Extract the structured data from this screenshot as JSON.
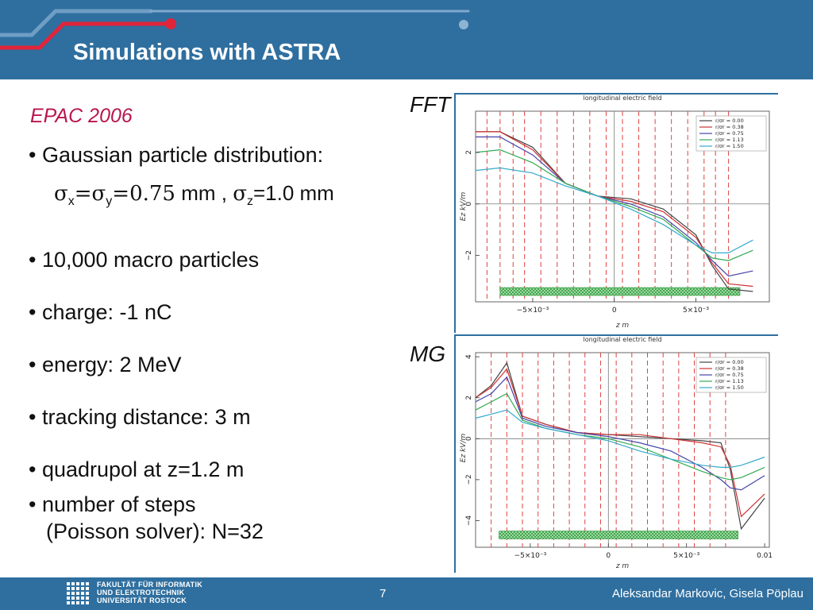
{
  "slide": {
    "title": "Simulations with ASTRA",
    "subtitle": "EPAC 2006",
    "bullets": [
      "• Gaussian particle distribution:",
      "• 10,000 macro particles",
      "• charge: -1 nC",
      "• energy: 2 MeV",
      "• tracking distance: 3 m",
      "• quadrupol at z=1.2 m",
      "• number of steps"
    ],
    "bullet_continuation": "(Poisson solver): N=32",
    "formula": {
      "sigma": "σ",
      "sub_x": "x",
      "sub_y": "y",
      "sub_z": "z",
      "eq1": "=",
      "eq2": "=0.75",
      "unit1": " mm , ",
      "eq3": "=1.0 mm"
    }
  },
  "plots": [
    {
      "label": "FFT",
      "title": "longitudinal electric field",
      "xlabel": "z m",
      "ylabel": "Ez kV/m",
      "xticks": [
        "−5×10⁻³",
        "0",
        "5×10⁻³"
      ],
      "yticks": [
        "2",
        "0",
        "−2"
      ],
      "legend": [
        "r/σr = 0.00",
        "r/σr = 0.38",
        "r/σr = 0.75",
        "r/σr = 1.13",
        "r/σr = 1.50"
      ]
    },
    {
      "label": "MG",
      "title": "longitudinal electric field",
      "xlabel": "z m",
      "ylabel": "Ez kV/m",
      "xticks": [
        "−5×10⁻³",
        "0",
        "5×10⁻³",
        "0.01"
      ],
      "yticks": [
        "4",
        "2",
        "0",
        "−2",
        "−4"
      ],
      "legend": [
        "r/σr = 0.00",
        "r/σr = 0.38",
        "r/σr = 0.75",
        "r/σr = 1.13",
        "r/σr = 1.50"
      ]
    }
  ],
  "footer": {
    "logo_lines": [
      "FAKULTÄT FÜR INFORMATIK",
      "UND ELEKTROTECHNIK",
      "UNIVERSITÄT ROSTOCK"
    ],
    "page": "7",
    "authors": "Aleksandar Markovic, Gisela Pöplau"
  },
  "colors": {
    "header": "#2f6f9f",
    "accent": "#e0243a",
    "subtitle": "#b8164f",
    "series": [
      "#444444",
      "#cc3333",
      "#4444aa",
      "#33aa55",
      "#33aacc"
    ]
  },
  "chart_data": [
    {
      "type": "line",
      "title": "longitudinal electric field",
      "xlabel": "z m",
      "ylabel": "Ez kV/m",
      "xlim": [
        -0.0085,
        0.0095
      ],
      "ylim": [
        -3.8,
        3.6
      ],
      "x": [
        -0.0085,
        -0.007,
        -0.005,
        -0.003,
        -0.001,
        0.001,
        0.003,
        0.005,
        0.006,
        0.007,
        0.0085
      ],
      "series": [
        {
          "name": "r/σr = 0.00",
          "values": [
            2.8,
            2.8,
            2.2,
            0.8,
            0.3,
            0.2,
            -0.2,
            -1.2,
            -2.4,
            -3.3,
            -3.4
          ]
        },
        {
          "name": "r/σr = 0.38",
          "values": [
            2.8,
            2.8,
            2.1,
            0.8,
            0.3,
            0.1,
            -0.3,
            -1.3,
            -2.3,
            -3.1,
            -3.2
          ]
        },
        {
          "name": "r/σr = 0.75",
          "values": [
            2.6,
            2.6,
            1.9,
            0.8,
            0.3,
            0.0,
            -0.5,
            -1.5,
            -2.2,
            -2.8,
            -2.6
          ]
        },
        {
          "name": "r/σr = 1.13",
          "values": [
            2.0,
            2.1,
            1.6,
            0.8,
            0.3,
            -0.1,
            -0.6,
            -1.6,
            -2.1,
            -2.2,
            -1.8
          ]
        },
        {
          "name": "r/σr = 1.50",
          "values": [
            1.3,
            1.4,
            1.2,
            0.7,
            0.3,
            -0.2,
            -0.8,
            -1.6,
            -1.9,
            -1.9,
            -1.4
          ]
        }
      ]
    },
    {
      "type": "line",
      "title": "longitudinal electric field",
      "xlabel": "z m",
      "ylabel": "Ez kV/m",
      "xlim": [
        -0.0085,
        0.0103
      ],
      "ylim": [
        -5.3,
        4.2
      ],
      "x": [
        -0.0085,
        -0.0075,
        -0.0065,
        -0.0055,
        -0.004,
        -0.002,
        0.0,
        0.002,
        0.004,
        0.006,
        0.0072,
        0.0078,
        0.0085,
        0.01
      ],
      "series": [
        {
          "name": "r/σr = 0.00",
          "values": [
            2.0,
            2.6,
            3.7,
            1.1,
            0.7,
            0.3,
            0.2,
            0.1,
            0.0,
            -0.1,
            -0.2,
            -1.5,
            -4.4,
            -2.9
          ]
        },
        {
          "name": "r/σr = 0.38",
          "values": [
            2.0,
            2.5,
            3.4,
            1.1,
            0.7,
            0.3,
            0.2,
            0.2,
            0.0,
            -0.2,
            -0.4,
            -1.3,
            -3.8,
            -2.7
          ]
        },
        {
          "name": "r/σr = 0.75",
          "values": [
            1.8,
            2.2,
            3.0,
            1.0,
            0.6,
            0.3,
            0.1,
            -0.2,
            -0.6,
            -1.4,
            -2.0,
            -2.4,
            -2.5,
            -1.8
          ]
        },
        {
          "name": "r/σr = 1.13",
          "values": [
            1.4,
            1.8,
            2.2,
            0.9,
            0.5,
            0.2,
            0.0,
            -0.4,
            -1.0,
            -1.6,
            -1.9,
            -2.0,
            -1.9,
            -1.4
          ]
        },
        {
          "name": "r/σr = 1.50",
          "values": [
            1.0,
            1.2,
            1.4,
            0.8,
            0.5,
            0.2,
            -0.1,
            -0.6,
            -1.0,
            -1.3,
            -1.4,
            -1.4,
            -1.3,
            -0.9
          ]
        }
      ]
    }
  ]
}
